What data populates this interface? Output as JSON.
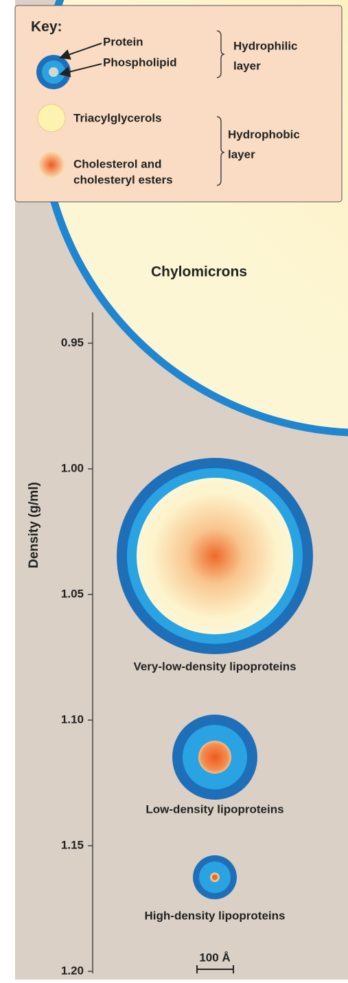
{
  "key": {
    "title": "Key:",
    "protein": "Protein",
    "phospholipid": "Phospholipid",
    "hydrophilic": [
      "Hydrophilic",
      "layer"
    ],
    "triacylglycerols": "Triacylglycerols",
    "cholesterol": [
      "Cholesterol and",
      "cholesteryl esters"
    ],
    "hydrophobic": [
      "Hydrophobic",
      "layer"
    ]
  },
  "axis": {
    "title": "Density (g/ml)",
    "ticks": [
      "0.95",
      "1.00",
      "1.05",
      "1.10",
      "1.15",
      "1.20"
    ]
  },
  "particles": [
    "Chylomicrons",
    "Very-low-density lipoproteins",
    "Low-density lipoproteins",
    "High-density lipoproteins"
  ],
  "scale": "100 Å"
}
